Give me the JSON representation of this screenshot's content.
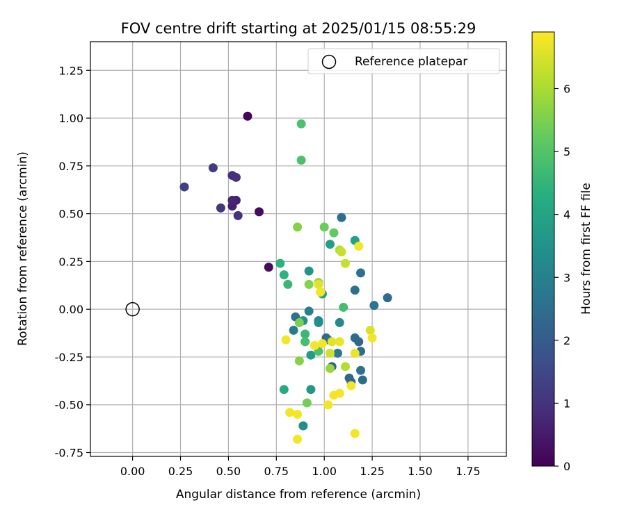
{
  "chart_data": {
    "type": "scatter",
    "title": "FOV centre drift starting at 2025/01/15 08:55:29",
    "xlabel": "Angular distance from reference (arcmin)",
    "ylabel": "Rotation from reference (arcmin)",
    "xlim": [
      -0.22,
      1.95
    ],
    "ylim": [
      -0.77,
      1.4
    ],
    "xticks": [
      "0.00",
      "0.25",
      "0.50",
      "0.75",
      "1.00",
      "1.25",
      "1.50",
      "1.75"
    ],
    "yticks": [
      "-0.75",
      "-0.50",
      "-0.25",
      "0.00",
      "0.25",
      "0.50",
      "0.75",
      "1.00",
      "1.25"
    ],
    "grid": true,
    "legend": {
      "placement": "top-right",
      "label": "Reference platepar"
    },
    "reference": {
      "x": 0.0,
      "y": 0.0
    },
    "colorbar": {
      "label": "Hours from first FF file",
      "range": [
        0,
        6.9
      ],
      "ticks": [
        "0",
        "1",
        "2",
        "3",
        "4",
        "5",
        "6"
      ],
      "colormap": "viridis"
    },
    "series": [
      {
        "points": [
          {
            "x": 0.6,
            "y": 1.01,
            "c": 0.1
          },
          {
            "x": 0.66,
            "y": 0.51,
            "c": 0.2
          },
          {
            "x": 0.71,
            "y": 0.22,
            "c": 0.2
          },
          {
            "x": 0.54,
            "y": 0.57,
            "c": 0.6
          },
          {
            "x": 0.52,
            "y": 0.54,
            "c": 0.6
          },
          {
            "x": 0.52,
            "y": 0.57,
            "c": 0.7
          },
          {
            "x": 0.52,
            "y": 0.7,
            "c": 0.9
          },
          {
            "x": 0.54,
            "y": 0.69,
            "c": 0.9
          },
          {
            "x": 0.55,
            "y": 0.49,
            "c": 1.0
          },
          {
            "x": 0.46,
            "y": 0.53,
            "c": 1.1
          },
          {
            "x": 0.42,
            "y": 0.74,
            "c": 1.2
          },
          {
            "x": 0.27,
            "y": 0.64,
            "c": 1.3
          },
          {
            "x": 1.33,
            "y": 0.06,
            "c": 2.4
          },
          {
            "x": 1.26,
            "y": 0.02,
            "c": 2.7
          },
          {
            "x": 1.09,
            "y": 0.48,
            "c": 2.5
          },
          {
            "x": 1.19,
            "y": 0.19,
            "c": 2.6
          },
          {
            "x": 1.16,
            "y": 0.1,
            "c": 2.6
          },
          {
            "x": 1.16,
            "y": -0.15,
            "c": 2.4
          },
          {
            "x": 1.18,
            "y": -0.17,
            "c": 2.3
          },
          {
            "x": 1.19,
            "y": -0.22,
            "c": 2.4
          },
          {
            "x": 1.19,
            "y": -0.32,
            "c": 2.6
          },
          {
            "x": 1.2,
            "y": -0.37,
            "c": 2.4
          },
          {
            "x": 1.13,
            "y": -0.36,
            "c": 2.3
          },
          {
            "x": 1.14,
            "y": -0.38,
            "c": 2.3
          },
          {
            "x": 1.04,
            "y": -0.3,
            "c": 2.2
          },
          {
            "x": 1.07,
            "y": -0.23,
            "c": 2.8
          },
          {
            "x": 1.01,
            "y": -0.15,
            "c": 2.4
          },
          {
            "x": 1.02,
            "y": -0.16,
            "c": 2.5
          },
          {
            "x": 0.85,
            "y": -0.04,
            "c": 2.6
          },
          {
            "x": 0.84,
            "y": -0.11,
            "c": 2.9
          },
          {
            "x": 0.92,
            "y": -0.01,
            "c": 3.0
          },
          {
            "x": 0.97,
            "y": -0.06,
            "c": 3.1
          },
          {
            "x": 0.97,
            "y": -0.07,
            "c": 3.4
          },
          {
            "x": 1.08,
            "y": -0.07,
            "c": 3.2
          },
          {
            "x": 0.89,
            "y": -0.06,
            "c": 3.5
          },
          {
            "x": 0.89,
            "y": -0.61,
            "c": 3.3
          },
          {
            "x": 0.93,
            "y": -0.42,
            "c": 3.6
          },
          {
            "x": 0.92,
            "y": 0.2,
            "c": 3.6
          },
          {
            "x": 0.99,
            "y": 0.08,
            "c": 3.9
          },
          {
            "x": 1.03,
            "y": 0.34,
            "c": 3.9
          },
          {
            "x": 1.16,
            "y": 0.36,
            "c": 3.9
          },
          {
            "x": 0.93,
            "y": -0.24,
            "c": 3.8
          },
          {
            "x": 0.79,
            "y": -0.42,
            "c": 4.2
          },
          {
            "x": 0.77,
            "y": 0.24,
            "c": 4.4
          },
          {
            "x": 0.79,
            "y": 0.18,
            "c": 4.4
          },
          {
            "x": 0.81,
            "y": 0.13,
            "c": 4.6
          },
          {
            "x": 0.9,
            "y": -0.13,
            "c": 4.6
          },
          {
            "x": 0.9,
            "y": -0.17,
            "c": 4.8
          },
          {
            "x": 0.97,
            "y": -0.22,
            "c": 4.9
          },
          {
            "x": 0.88,
            "y": 0.78,
            "c": 4.9
          },
          {
            "x": 0.88,
            "y": 0.97,
            "c": 4.9
          },
          {
            "x": 1.1,
            "y": 0.01,
            "c": 4.8
          },
          {
            "x": 1.05,
            "y": 0.4,
            "c": 5.2
          },
          {
            "x": 1.0,
            "y": 0.43,
            "c": 5.3
          },
          {
            "x": 0.86,
            "y": 0.43,
            "c": 5.6
          },
          {
            "x": 0.87,
            "y": -0.07,
            "c": 5.5
          },
          {
            "x": 0.87,
            "y": -0.27,
            "c": 5.6
          },
          {
            "x": 0.91,
            "y": -0.49,
            "c": 5.4
          },
          {
            "x": 0.92,
            "y": 0.13,
            "c": 5.6
          },
          {
            "x": 0.97,
            "y": 0.14,
            "c": 5.8
          },
          {
            "x": 1.03,
            "y": -0.31,
            "c": 5.8
          },
          {
            "x": 1.11,
            "y": -0.3,
            "c": 6.1
          },
          {
            "x": 1.08,
            "y": 0.31,
            "c": 6.1
          },
          {
            "x": 1.09,
            "y": 0.3,
            "c": 6.3
          },
          {
            "x": 1.11,
            "y": 0.24,
            "c": 6.3
          },
          {
            "x": 1.03,
            "y": -0.23,
            "c": 6.4
          },
          {
            "x": 1.24,
            "y": -0.11,
            "c": 6.5
          },
          {
            "x": 0.8,
            "y": -0.16,
            "c": 6.8
          },
          {
            "x": 0.82,
            "y": -0.54,
            "c": 6.8
          },
          {
            "x": 0.86,
            "y": -0.55,
            "c": 6.8
          },
          {
            "x": 0.86,
            "y": -0.68,
            "c": 6.8
          },
          {
            "x": 0.95,
            "y": -0.19,
            "c": 6.8
          },
          {
            "x": 0.99,
            "y": -0.18,
            "c": 6.8
          },
          {
            "x": 0.97,
            "y": 0.13,
            "c": 6.6
          },
          {
            "x": 0.98,
            "y": 0.09,
            "c": 6.8
          },
          {
            "x": 1.02,
            "y": -0.5,
            "c": 6.8
          },
          {
            "x": 1.05,
            "y": -0.45,
            "c": 6.8
          },
          {
            "x": 1.08,
            "y": -0.44,
            "c": 6.8
          },
          {
            "x": 1.04,
            "y": -0.17,
            "c": 6.6
          },
          {
            "x": 1.08,
            "y": -0.17,
            "c": 6.7
          },
          {
            "x": 1.14,
            "y": -0.4,
            "c": 6.8
          },
          {
            "x": 1.16,
            "y": -0.23,
            "c": 6.7
          },
          {
            "x": 1.16,
            "y": -0.65,
            "c": 6.8
          },
          {
            "x": 1.18,
            "y": 0.33,
            "c": 6.8
          },
          {
            "x": 1.25,
            "y": -0.15,
            "c": 6.8
          }
        ]
      }
    ]
  }
}
